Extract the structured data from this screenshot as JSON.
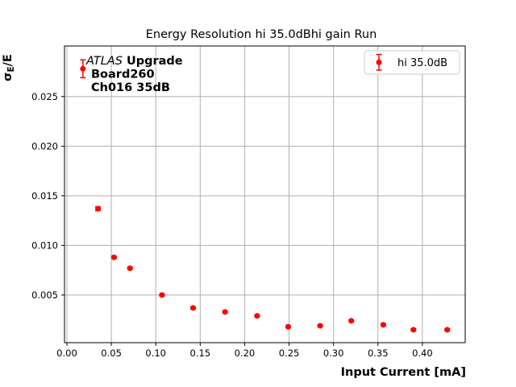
{
  "figure": {
    "background": "#ffffff",
    "spine_color": "#000000"
  },
  "chart_data": {
    "type": "scatter",
    "title": "Energy Resolution hi 35.0dBhi gain Run",
    "xlabel": "Input Current [mA]",
    "ylabel": "σE/E",
    "ylabel_parts": {
      "sigma": "σ",
      "sub": "E",
      "rest": "/E"
    },
    "xlim": [
      -0.0027,
      0.4482
    ],
    "ylim": [
      0.0002,
      0.0301
    ],
    "grid": true,
    "grid_color": "#b0b0b0",
    "x_ticks": [
      {
        "v": 0.0,
        "label": "0.00"
      },
      {
        "v": 0.05,
        "label": "0.05"
      },
      {
        "v": 0.1,
        "label": "0.10"
      },
      {
        "v": 0.15,
        "label": "0.15"
      },
      {
        "v": 0.2,
        "label": "0.20"
      },
      {
        "v": 0.25,
        "label": "0.25"
      },
      {
        "v": 0.3,
        "label": "0.30"
      },
      {
        "v": 0.35,
        "label": "0.35"
      },
      {
        "v": 0.4,
        "label": "0.40"
      }
    ],
    "y_ticks": [
      {
        "v": 0.005,
        "label": "0.005"
      },
      {
        "v": 0.01,
        "label": "0.010"
      },
      {
        "v": 0.015,
        "label": "0.015"
      },
      {
        "v": 0.02,
        "label": "0.020"
      },
      {
        "v": 0.025,
        "label": "0.025"
      }
    ],
    "legend": {
      "position": "upper right",
      "entries": [
        {
          "label": "hi 35.0dB",
          "color": "#ff0000",
          "marker": "errorbar-circle"
        }
      ]
    },
    "series": [
      {
        "name": "hi 35.0dB",
        "color": "#ff0000",
        "marker": "circle",
        "points": [
          {
            "x": 0.018,
            "y": 0.0278,
            "yerr": 0.0009
          },
          {
            "x": 0.035,
            "y": 0.0137,
            "yerr": 0.0002
          },
          {
            "x": 0.053,
            "y": 0.0088,
            "yerr": 0.0001
          },
          {
            "x": 0.071,
            "y": 0.0077,
            "yerr": 0.0001
          },
          {
            "x": 0.107,
            "y": 0.005,
            "yerr": 0.0001
          },
          {
            "x": 0.142,
            "y": 0.0037,
            "yerr": 0.0001
          },
          {
            "x": 0.178,
            "y": 0.0033,
            "yerr": 0.0001
          },
          {
            "x": 0.214,
            "y": 0.0029,
            "yerr": 0.0001
          },
          {
            "x": 0.249,
            "y": 0.0018,
            "yerr": 0.0001
          },
          {
            "x": 0.285,
            "y": 0.0019,
            "yerr": 0.0001
          },
          {
            "x": 0.32,
            "y": 0.0024,
            "yerr": 0.0001
          },
          {
            "x": 0.356,
            "y": 0.002,
            "yerr": 0.0001
          },
          {
            "x": 0.39,
            "y": 0.0015,
            "yerr": 0.0001
          },
          {
            "x": 0.428,
            "y": 0.0015,
            "yerr": 0.0001
          }
        ]
      }
    ],
    "annotation": {
      "line1_italic": "ATLAS",
      "line1_bold": "Upgrade",
      "line2": "Board260",
      "line3": "Ch016 35dB"
    }
  }
}
